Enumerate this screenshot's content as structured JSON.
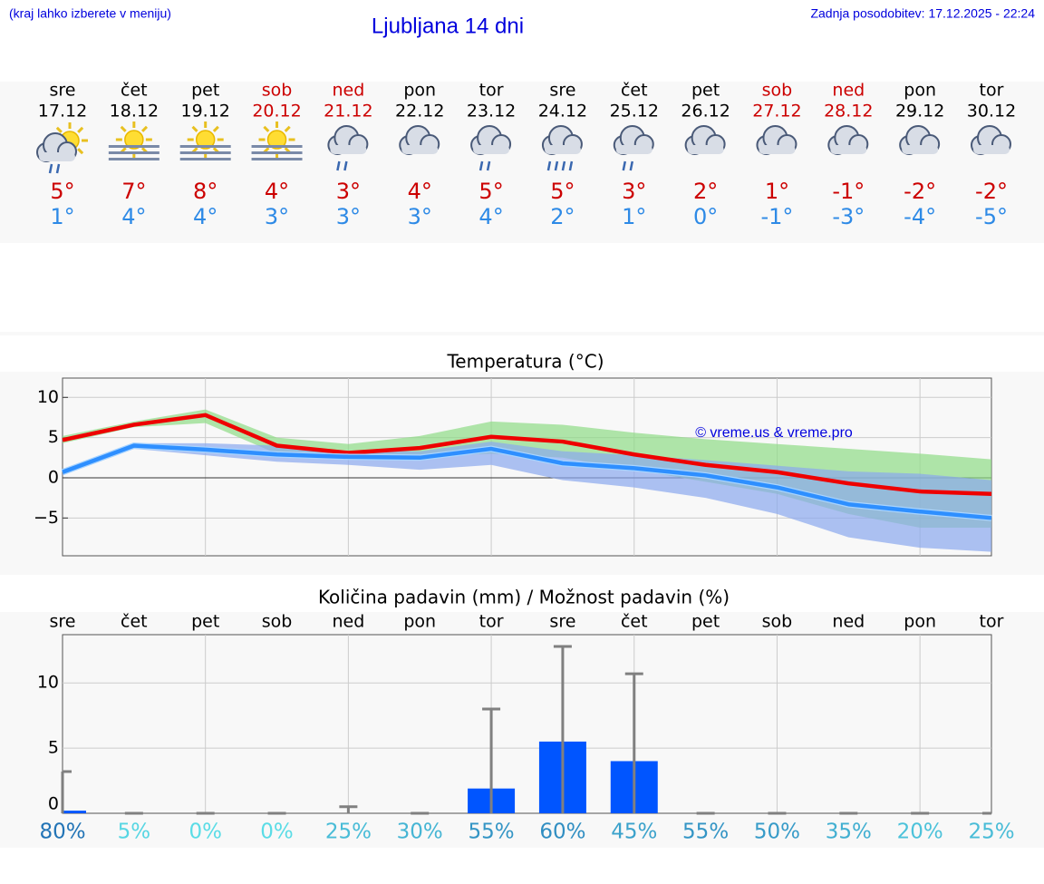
{
  "header": {
    "note": "(kraj lahko izberete v meniju)",
    "title": "Ljubljana 14 dni",
    "updated": "Zadnja posodobitev: 17.12.2025 - 22:24"
  },
  "forecast": {
    "days": [
      "sre",
      "čet",
      "pet",
      "sob",
      "ned",
      "pon",
      "tor",
      "sre",
      "čet",
      "pet",
      "sob",
      "ned",
      "pon",
      "tor"
    ],
    "dates": [
      "17.12",
      "18.12",
      "19.12",
      "20.12",
      "21.12",
      "22.12",
      "23.12",
      "24.12",
      "25.12",
      "26.12",
      "27.12",
      "28.12",
      "29.12",
      "30.12"
    ],
    "day_colors": [
      "#000000",
      "#000000",
      "#000000",
      "#cc0000",
      "#cc0000",
      "#000000",
      "#000000",
      "#000000",
      "#000000",
      "#000000",
      "#cc0000",
      "#cc0000",
      "#000000",
      "#000000"
    ],
    "max": [
      "5°",
      "7°",
      "8°",
      "4°",
      "3°",
      "4°",
      "5°",
      "5°",
      "3°",
      "2°",
      "1°",
      "-1°",
      "-2°",
      "-2°"
    ],
    "min": [
      "1°",
      "4°",
      "4°",
      "3°",
      "3°",
      "3°",
      "4°",
      "2°",
      "1°",
      "0°",
      "-1°",
      "-3°",
      "-4°",
      "-5°"
    ],
    "max_color": "#cc0000",
    "min_color": "#2e8ae6"
  },
  "chart_data": [
    {
      "type": "line",
      "title": "Temperatura (°C)",
      "annotation": "© vreme.us & vreme.pro",
      "x": [
        0,
        1,
        2,
        3,
        4,
        5,
        6,
        7,
        8,
        9,
        10,
        11,
        12,
        13
      ],
      "xlim": [
        0,
        13
      ],
      "ylim": [
        -9.7,
        12.4
      ],
      "yticks": [
        10,
        5,
        0,
        {
          "value": -5,
          "label": "−5"
        }
      ],
      "grid": true,
      "bands": [
        {
          "color": "#8edc86",
          "high": [
            5.2,
            7.0,
            8.5,
            5.0,
            4.2,
            5.2,
            7.0,
            6.6,
            5.6,
            4.8,
            4.2,
            3.6,
            3.0,
            2.3
          ],
          "low": [
            4.3,
            6.3,
            6.8,
            3.0,
            2.5,
            2.6,
            3.0,
            2.5,
            1.0,
            -0.5,
            -2.0,
            -4.5,
            -6.2,
            -6.2
          ]
        },
        {
          "color": "#8aa8ee",
          "high": [
            1.0,
            4.3,
            4.3,
            4.0,
            3.3,
            3.3,
            4.5,
            3.3,
            2.8,
            2.2,
            1.5,
            0.8,
            0.5,
            -0.3
          ],
          "low": [
            0.3,
            3.6,
            2.8,
            2.0,
            1.6,
            1.0,
            1.6,
            -0.3,
            -1.2,
            -2.5,
            -4.5,
            -7.4,
            -8.7,
            -9.2
          ]
        }
      ],
      "series": [
        {
          "color": "#ee0000",
          "values": [
            4.7,
            6.6,
            7.8,
            4.0,
            3.1,
            3.7,
            5.1,
            4.5,
            2.9,
            1.6,
            0.7,
            -0.7,
            -1.7,
            -2.0
          ]
        },
        {
          "color": "#2e8fff",
          "values": [
            0.7,
            4.0,
            3.5,
            2.9,
            2.6,
            2.5,
            3.6,
            1.8,
            1.2,
            0.3,
            -1.2,
            -3.3,
            -4.2,
            -5.0
          ]
        }
      ]
    },
    {
      "type": "bar",
      "title": "Količina padavin (mm) / Možnost padavin (%)",
      "categories": [
        "sre",
        "čet",
        "pet",
        "sob",
        "ned",
        "pon",
        "tor",
        "sre",
        "čet",
        "pet",
        "sob",
        "ned",
        "pon",
        "tor"
      ],
      "values": [
        0.2,
        0,
        0,
        0,
        0,
        0,
        1.9,
        5.5,
        4.0,
        0,
        0,
        0,
        0,
        0
      ],
      "upper": [
        3.2,
        0,
        0,
        0,
        0.5,
        0,
        8.0,
        12.8,
        10.7,
        0,
        0,
        0,
        0,
        0
      ],
      "probability": [
        80,
        5,
        0,
        0,
        25,
        30,
        55,
        60,
        45,
        55,
        50,
        35,
        20,
        25
      ],
      "probability_labels": [
        "80%",
        "5%",
        "0%",
        "0%",
        "25%",
        "30%",
        "55%",
        "60%",
        "45%",
        "55%",
        "50%",
        "35%",
        "20%",
        "25%"
      ],
      "color": "#0055ff",
      "error_color": "#808080",
      "ylim": [
        0,
        13.7
      ],
      "yticks": [
        0,
        5,
        10
      ],
      "grid": true
    }
  ]
}
